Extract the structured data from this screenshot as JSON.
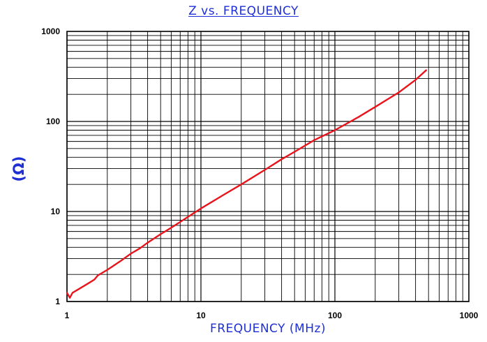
{
  "chart_data": {
    "type": "line",
    "title": "Z  vs.  FREQUENCY",
    "xlabel": "FREQUENCY  (MHz)",
    "ylabel": "(Ω)",
    "xscale": "log",
    "yscale": "log",
    "xlim": [
      1,
      1000
    ],
    "ylim": [
      1,
      1000
    ],
    "x_ticks": [
      "1",
      "10",
      "100",
      "1000"
    ],
    "y_ticks": [
      "1",
      "10",
      "100",
      "1000"
    ],
    "grid": true,
    "legend": "none",
    "series": [
      {
        "color": "#e8141c",
        "x": [
          1.0,
          1.05,
          1.1,
          1.2,
          1.3,
          1.45,
          1.6,
          1.7,
          2.0,
          2.5,
          3.0,
          3.5,
          4.0,
          5.0,
          6.0,
          8.0,
          10,
          15,
          20,
          30,
          40,
          50,
          70,
          100,
          150,
          200,
          300,
          400,
          480
        ],
        "values": [
          1.25,
          1.1,
          1.25,
          1.35,
          1.45,
          1.6,
          1.75,
          1.95,
          2.25,
          2.8,
          3.4,
          3.9,
          4.5,
          5.6,
          6.6,
          8.7,
          10.8,
          15.5,
          20,
          29,
          38,
          46,
          62,
          80,
          112,
          145,
          210,
          290,
          370
        ]
      }
    ]
  }
}
